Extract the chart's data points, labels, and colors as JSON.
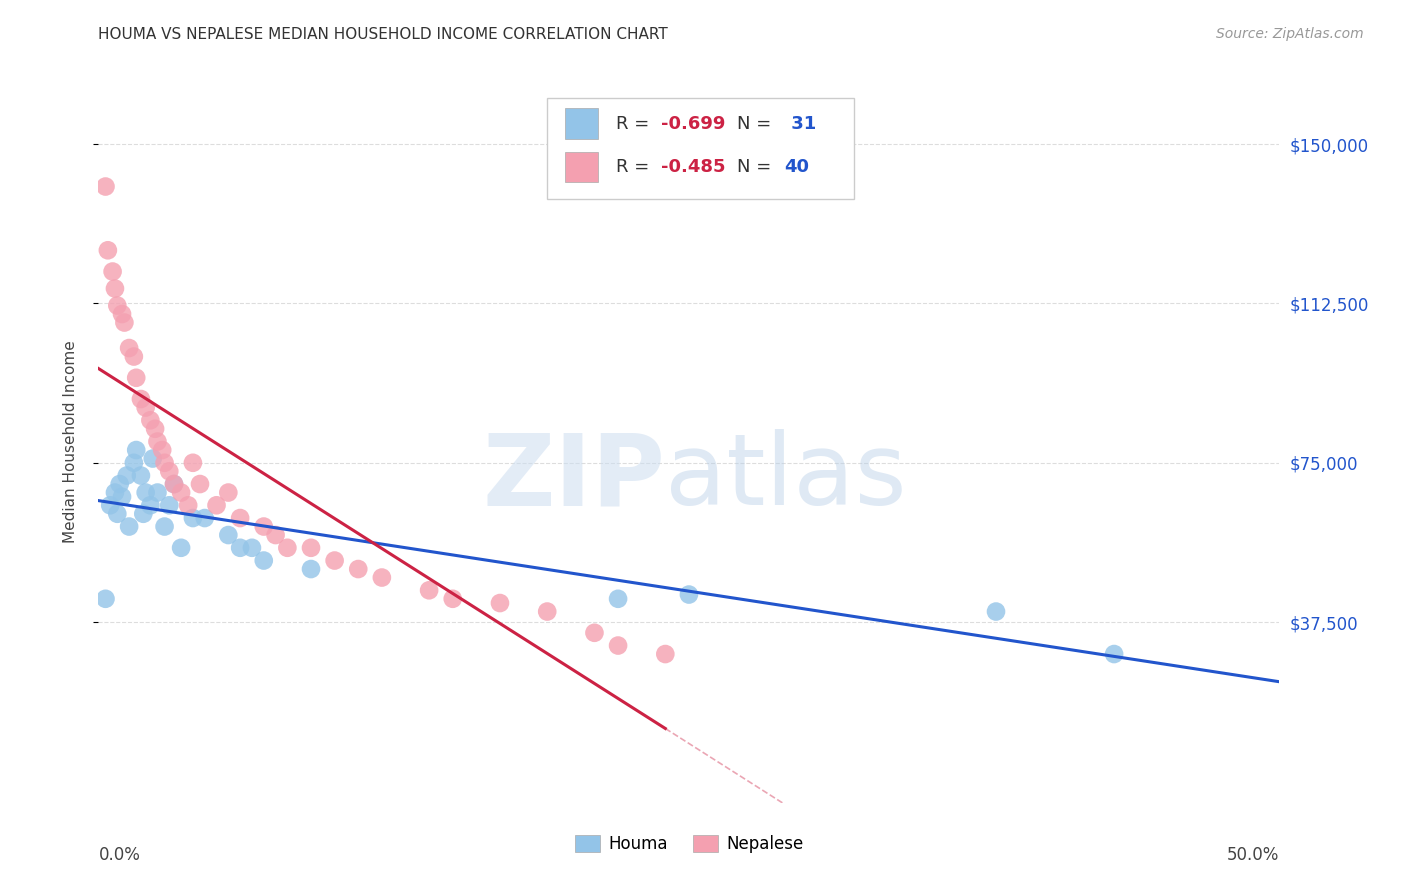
{
  "title": "HOUMA VS NEPALESE MEDIAN HOUSEHOLD INCOME CORRELATION CHART",
  "source": "Source: ZipAtlas.com",
  "ylabel": "Median Household Income",
  "xlim": [
    0.0,
    0.5
  ],
  "ylim": [
    -5000,
    165000
  ],
  "houma_color": "#93c4e8",
  "nepalese_color": "#f4a0b0",
  "houma_line_color": "#2255cc",
  "nepalese_line_color": "#cc2244",
  "houma_scatter_x": [
    0.003,
    0.005,
    0.007,
    0.008,
    0.009,
    0.01,
    0.012,
    0.013,
    0.015,
    0.016,
    0.018,
    0.019,
    0.02,
    0.022,
    0.023,
    0.025,
    0.028,
    0.03,
    0.032,
    0.035,
    0.04,
    0.045,
    0.055,
    0.06,
    0.065,
    0.07,
    0.09,
    0.22,
    0.25,
    0.38,
    0.43
  ],
  "houma_scatter_y": [
    43000,
    65000,
    68000,
    63000,
    70000,
    67000,
    72000,
    60000,
    75000,
    78000,
    72000,
    63000,
    68000,
    65000,
    76000,
    68000,
    60000,
    65000,
    70000,
    55000,
    62000,
    62000,
    58000,
    55000,
    55000,
    52000,
    50000,
    43000,
    44000,
    40000,
    30000
  ],
  "nepalese_scatter_x": [
    0.003,
    0.004,
    0.006,
    0.007,
    0.008,
    0.01,
    0.011,
    0.013,
    0.015,
    0.016,
    0.018,
    0.02,
    0.022,
    0.024,
    0.025,
    0.027,
    0.028,
    0.03,
    0.032,
    0.035,
    0.038,
    0.04,
    0.043,
    0.05,
    0.055,
    0.06,
    0.07,
    0.075,
    0.08,
    0.09,
    0.1,
    0.11,
    0.12,
    0.14,
    0.15,
    0.17,
    0.19,
    0.21,
    0.22,
    0.24
  ],
  "nepalese_scatter_y": [
    140000,
    125000,
    120000,
    116000,
    112000,
    110000,
    108000,
    102000,
    100000,
    95000,
    90000,
    88000,
    85000,
    83000,
    80000,
    78000,
    75000,
    73000,
    70000,
    68000,
    65000,
    75000,
    70000,
    65000,
    68000,
    62000,
    60000,
    58000,
    55000,
    55000,
    52000,
    50000,
    48000,
    45000,
    43000,
    42000,
    40000,
    35000,
    32000,
    30000
  ],
  "background_color": "#ffffff",
  "grid_color": "#dddddd",
  "ytick_vals": [
    37500,
    75000,
    112500,
    150000
  ],
  "ytick_labels": [
    "$37,500",
    "$75,000",
    "$112,500",
    "$150,000"
  ]
}
